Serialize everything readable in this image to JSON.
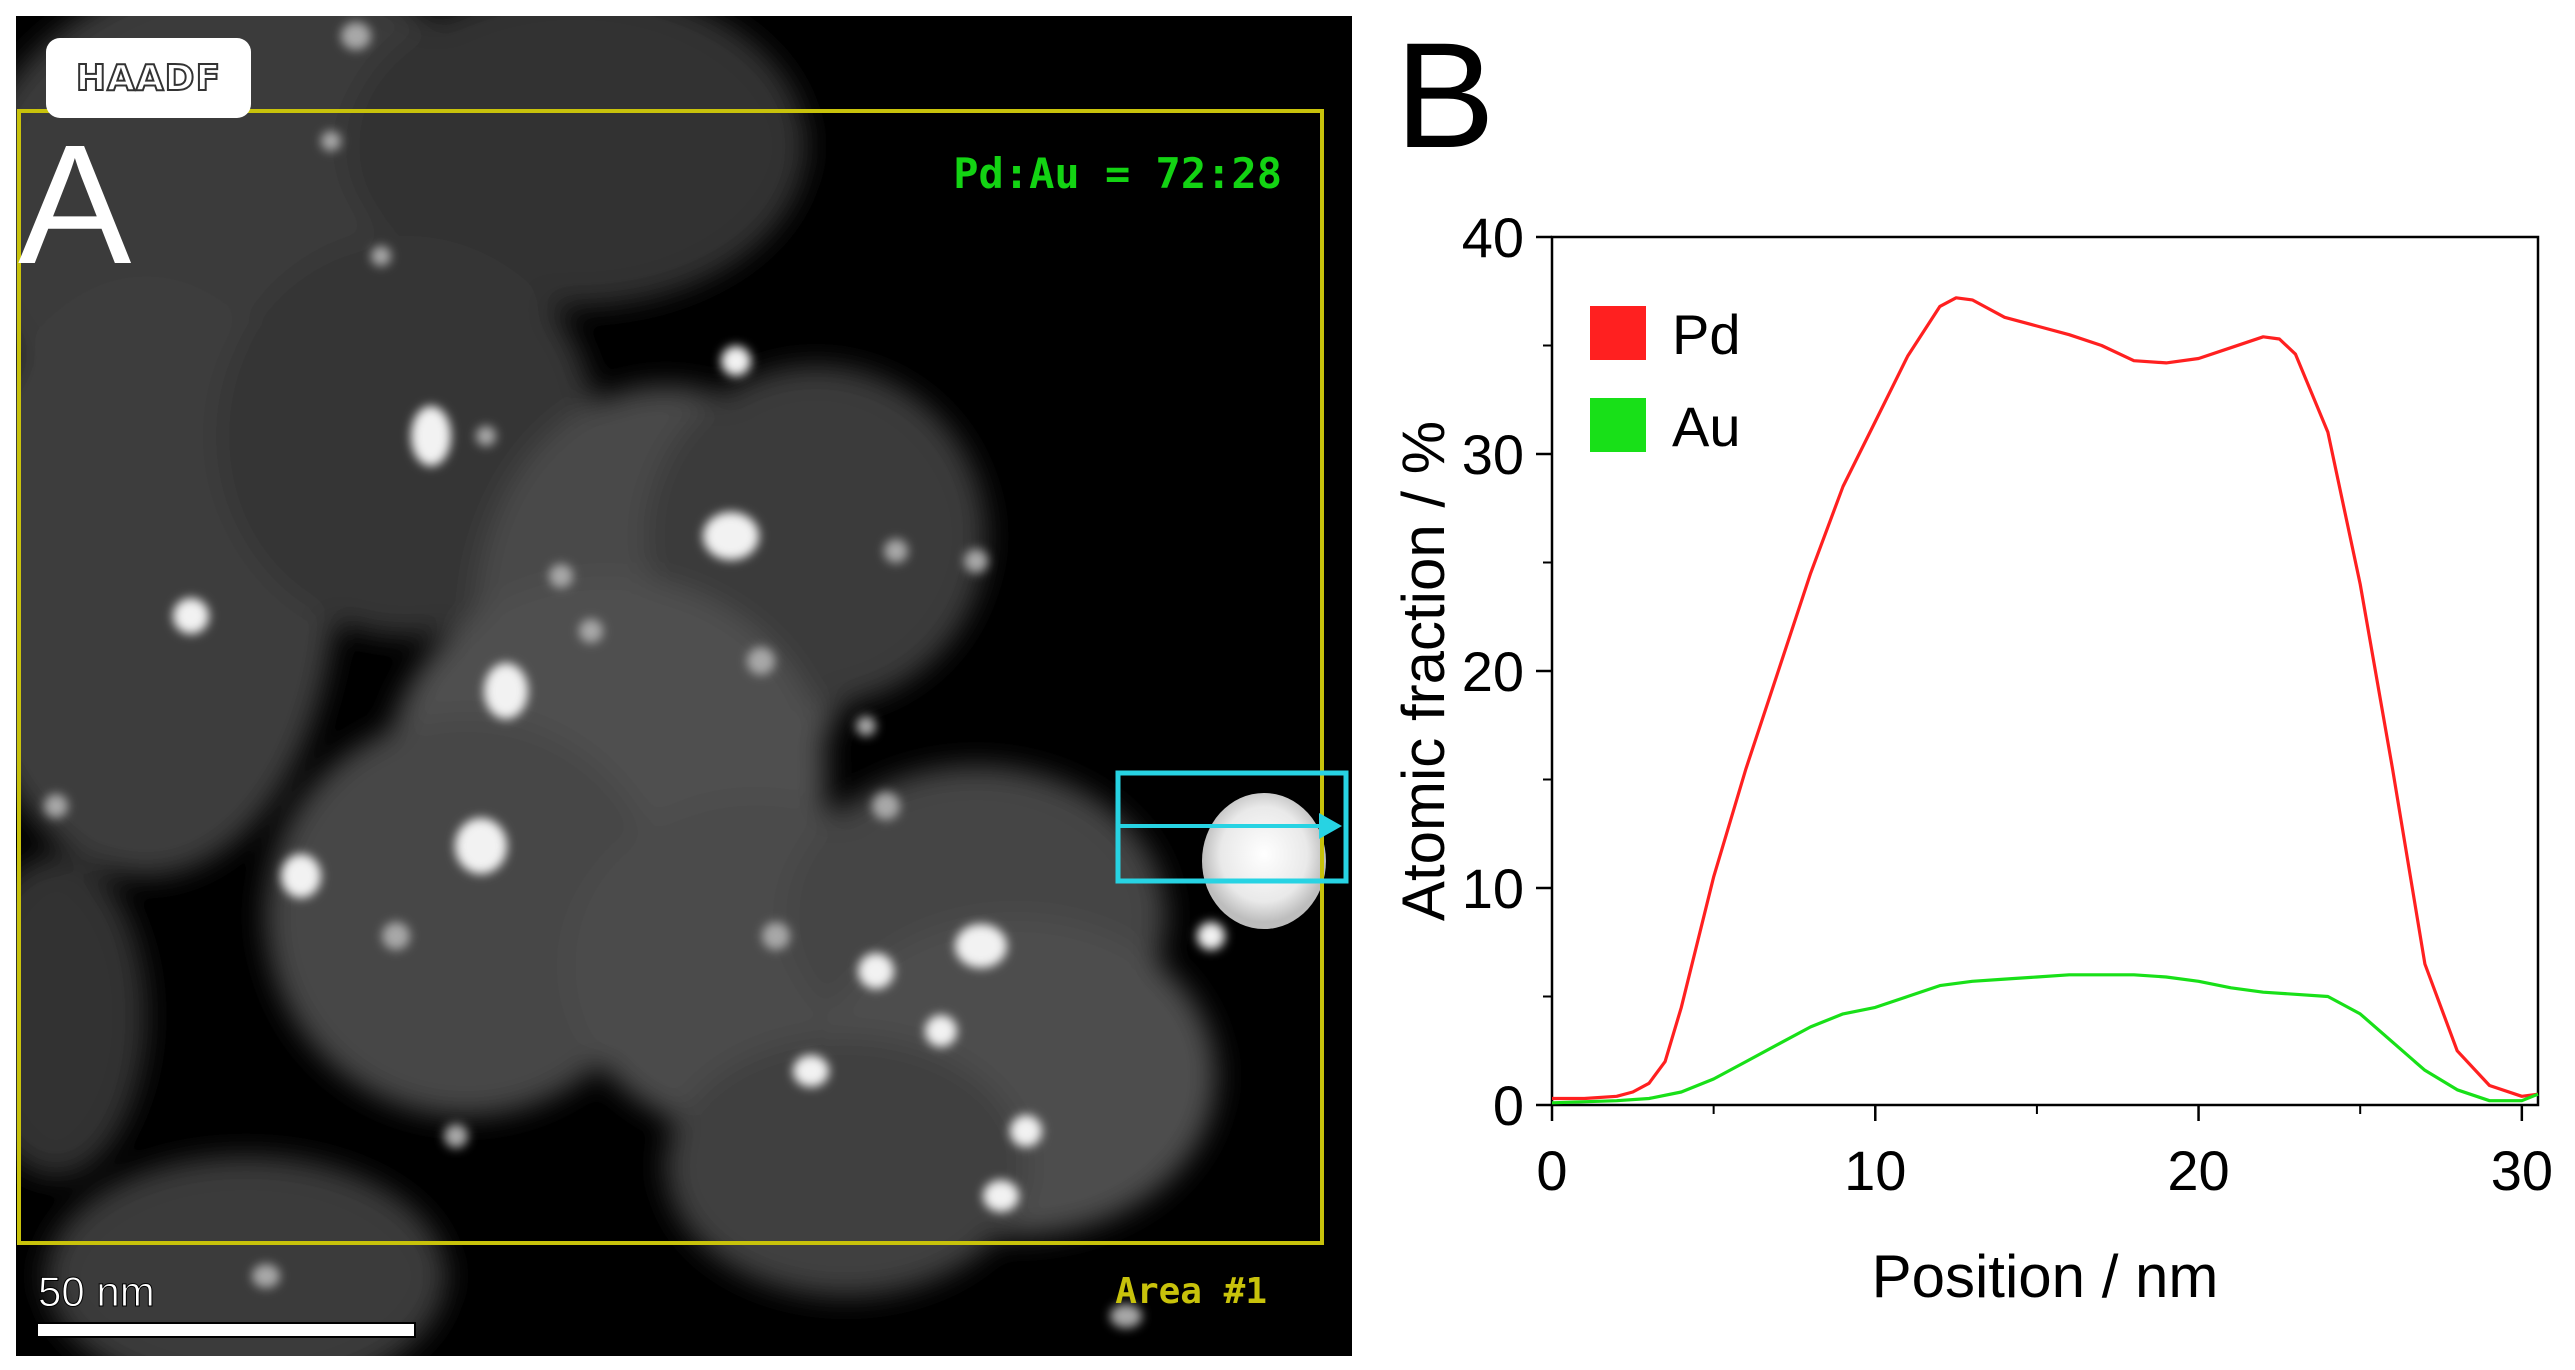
{
  "panel_a": {
    "letter": "A",
    "modality": "HAADF",
    "ratio_text": "Pd:Au = 72:28",
    "area_text": "Area #1",
    "scale_text": "50 nm",
    "colors": {
      "area_box": "#c8c20b",
      "line_scan_box": "#27d3e3",
      "ratio_text": "#13d313"
    }
  },
  "panel_b": {
    "letter": "B"
  },
  "chart_data": {
    "type": "line",
    "xlabel": "Position / nm",
    "ylabel": "Atomic fraction / %",
    "xlim": [
      0,
      30.5
    ],
    "ylim": [
      0,
      40
    ],
    "xticks": [
      0,
      10,
      20,
      30
    ],
    "yticks": [
      0,
      10,
      20,
      30,
      40
    ],
    "grid": false,
    "legend_position": "top-left",
    "series": [
      {
        "name": "Pd",
        "color": "#ff2020",
        "x": [
          0,
          1,
          2,
          2.5,
          3,
          3.5,
          4,
          5,
          6,
          7,
          8,
          9,
          10,
          11,
          12,
          12.5,
          13,
          14,
          15,
          16,
          17,
          18,
          19,
          20,
          21,
          22,
          22.5,
          23,
          24,
          25,
          26,
          27,
          28,
          29,
          30,
          30.5
        ],
        "y": [
          0.3,
          0.3,
          0.4,
          0.6,
          1.0,
          2.0,
          4.5,
          10.5,
          15.5,
          20,
          24.5,
          28.5,
          31.5,
          34.5,
          36.8,
          37.2,
          37.1,
          36.3,
          35.9,
          35.5,
          35.0,
          34.3,
          34.2,
          34.4,
          34.9,
          35.4,
          35.3,
          34.6,
          31.0,
          24.0,
          15.5,
          6.5,
          2.5,
          0.9,
          0.4,
          0.5
        ]
      },
      {
        "name": "Au",
        "color": "#18e018",
        "x": [
          0,
          2,
          3,
          4,
          5,
          6,
          7,
          8,
          9,
          10,
          11,
          12,
          13,
          14,
          15,
          16,
          17,
          18,
          19,
          20,
          21,
          22,
          23,
          24,
          25,
          26,
          27,
          28,
          29,
          30,
          30.5
        ],
        "y": [
          0.1,
          0.2,
          0.3,
          0.6,
          1.2,
          2.0,
          2.8,
          3.6,
          4.2,
          4.5,
          5.0,
          5.5,
          5.7,
          5.8,
          5.9,
          6.0,
          6.0,
          6.0,
          5.9,
          5.7,
          5.4,
          5.2,
          5.1,
          5.0,
          4.2,
          2.9,
          1.6,
          0.7,
          0.2,
          0.2,
          0.5
        ]
      }
    ]
  }
}
